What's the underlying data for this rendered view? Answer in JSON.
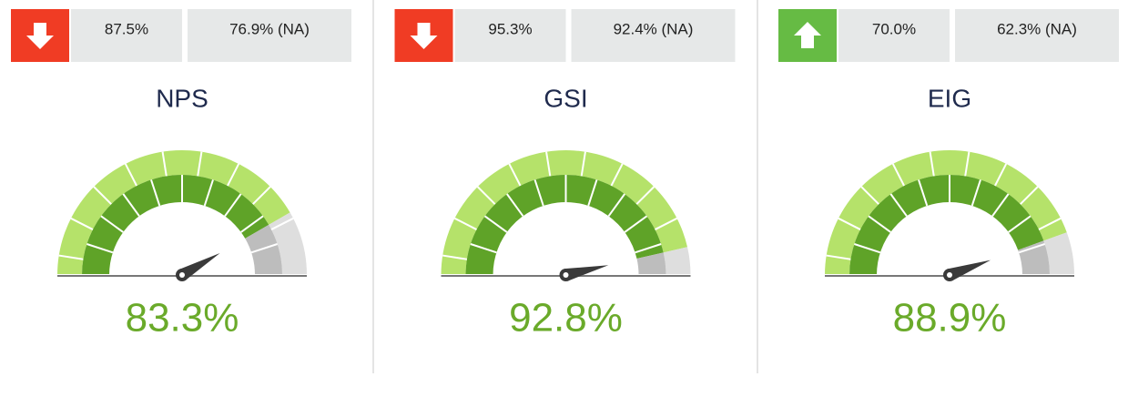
{
  "widgets": [
    {
      "name": "NPS",
      "value": 83.3,
      "value_label": "83.3%",
      "trend": "down",
      "stat": "87.5%",
      "benchmark": "76.9% (NA)"
    },
    {
      "name": "GSI",
      "value": 92.8,
      "value_label": "92.8%",
      "trend": "down",
      "stat": "95.3%",
      "benchmark": "92.4% (NA)"
    },
    {
      "name": "EIG",
      "value": 88.9,
      "value_label": "88.9%",
      "trend": "up",
      "stat": "70.0%",
      "benchmark": "62.3% (NA)"
    }
  ]
}
